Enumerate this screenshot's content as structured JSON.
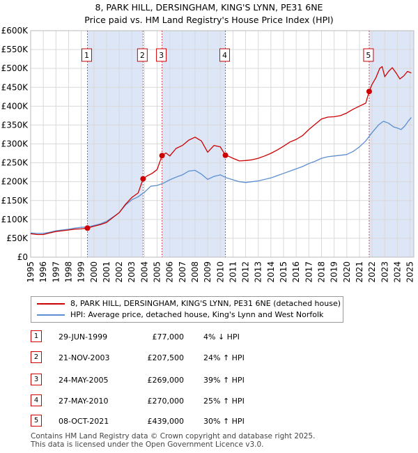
{
  "chart_data": {
    "type": "line",
    "title": "8, PARK HILL, DERSINGHAM, KING'S LYNN, PE31 6NE",
    "subtitle": "Price paid vs. HM Land Registry's House Price Index (HPI)",
    "xlabel": "",
    "ylabel": "",
    "xlim": [
      1995,
      2025.3
    ],
    "ylim": [
      0,
      600000
    ],
    "y_ticks": [
      {
        "value": 0,
        "label": "£0"
      },
      {
        "value": 50000,
        "label": "£50K"
      },
      {
        "value": 100000,
        "label": "£100K"
      },
      {
        "value": 150000,
        "label": "£150K"
      },
      {
        "value": 200000,
        "label": "£200K"
      },
      {
        "value": 250000,
        "label": "£250K"
      },
      {
        "value": 300000,
        "label": "£300K"
      },
      {
        "value": 350000,
        "label": "£350K"
      },
      {
        "value": 400000,
        "label": "£400K"
      },
      {
        "value": 450000,
        "label": "£450K"
      },
      {
        "value": 500000,
        "label": "£500K"
      },
      {
        "value": 550000,
        "label": "£550K"
      },
      {
        "value": 600000,
        "label": "£600K"
      }
    ],
    "x_ticks": [
      "1995",
      "1996",
      "1997",
      "1998",
      "1999",
      "2000",
      "2001",
      "2002",
      "2003",
      "2004",
      "2005",
      "2006",
      "2007",
      "2008",
      "2009",
      "2010",
      "2011",
      "2012",
      "2013",
      "2014",
      "2015",
      "2016",
      "2017",
      "2018",
      "2019",
      "2020",
      "2021",
      "2022",
      "2023",
      "2024",
      "2025"
    ],
    "series": [
      {
        "name": "8, PARK HILL, DERSINGHAM, KING'S LYNN, PE31 6NE (detached house)",
        "color": "#cc0000",
        "x": [
          1995.0,
          1995.5,
          1996.0,
          1996.5,
          1997.0,
          1997.5,
          1998.0,
          1998.5,
          1999.0,
          1999.49,
          2000.0,
          2000.5,
          2001.0,
          2001.5,
          2002.0,
          2002.5,
          2003.0,
          2003.5,
          2003.89,
          2004.2,
          2004.6,
          2005.0,
          2005.39,
          2005.7,
          2006.0,
          2006.5,
          2007.0,
          2007.5,
          2008.0,
          2008.5,
          2009.0,
          2009.5,
          2010.0,
          2010.4,
          2010.6,
          2011.0,
          2011.5,
          2012.0,
          2012.5,
          2013.0,
          2013.5,
          2014.0,
          2014.5,
          2015.0,
          2015.5,
          2016.0,
          2016.5,
          2017.0,
          2017.5,
          2018.0,
          2018.5,
          2019.0,
          2019.5,
          2020.0,
          2020.5,
          2021.0,
          2021.5,
          2021.77,
          2022.0,
          2022.3,
          2022.6,
          2022.8,
          2023.0,
          2023.3,
          2023.6,
          2023.9,
          2024.2,
          2024.5,
          2024.8,
          2025.1
        ],
        "values": [
          62000,
          60000,
          60000,
          64000,
          68000,
          70000,
          72000,
          74000,
          75000,
          77000,
          82000,
          86000,
          92000,
          105000,
          118000,
          140000,
          158000,
          170000,
          207500,
          215000,
          222000,
          232000,
          269000,
          276000,
          268000,
          288000,
          296000,
          310000,
          318000,
          308000,
          278000,
          296000,
          292000,
          270000,
          268000,
          262000,
          255000,
          256000,
          258000,
          262000,
          268000,
          275000,
          284000,
          294000,
          305000,
          312000,
          322000,
          338000,
          352000,
          366000,
          371000,
          372000,
          375000,
          382000,
          392000,
          400000,
          408000,
          439000,
          458000,
          475000,
          500000,
          505000,
          478000,
          492000,
          502000,
          488000,
          472000,
          480000,
          492000,
          488000
        ]
      },
      {
        "name": "HPI: Average price, detached house, King's Lynn and West Norfolk",
        "color": "#5b8ed0",
        "x": [
          1995.0,
          1995.5,
          1996.0,
          1996.5,
          1997.0,
          1997.5,
          1998.0,
          1998.5,
          1999.0,
          1999.5,
          2000.0,
          2000.5,
          2001.0,
          2001.5,
          2002.0,
          2002.5,
          2003.0,
          2003.5,
          2004.0,
          2004.5,
          2005.0,
          2005.5,
          2006.0,
          2006.5,
          2007.0,
          2007.5,
          2008.0,
          2008.5,
          2009.0,
          2009.5,
          2010.0,
          2010.5,
          2011.0,
          2011.5,
          2012.0,
          2012.5,
          2013.0,
          2013.5,
          2014.0,
          2014.5,
          2015.0,
          2015.5,
          2016.0,
          2016.5,
          2017.0,
          2017.5,
          2018.0,
          2018.5,
          2019.0,
          2019.5,
          2020.0,
          2020.5,
          2021.0,
          2021.5,
          2022.0,
          2022.5,
          2022.9,
          2023.3,
          2023.7,
          2024.0,
          2024.3,
          2024.6,
          2024.9,
          2025.1
        ],
        "values": [
          64000,
          63000,
          63000,
          66000,
          70000,
          72000,
          74000,
          77000,
          79000,
          80000,
          84000,
          88000,
          95000,
          106000,
          118000,
          138000,
          152000,
          160000,
          172000,
          188000,
          190000,
          196000,
          205000,
          212000,
          218000,
          228000,
          230000,
          220000,
          206000,
          214000,
          218000,
          210000,
          205000,
          200000,
          198000,
          200000,
          202000,
          206000,
          210000,
          216000,
          222000,
          228000,
          234000,
          240000,
          248000,
          254000,
          262000,
          266000,
          268000,
          270000,
          272000,
          280000,
          292000,
          308000,
          330000,
          350000,
          360000,
          355000,
          345000,
          342000,
          338000,
          348000,
          362000,
          370000
        ]
      }
    ],
    "sales": [
      {
        "label": "1",
        "x": 1999.49,
        "value": 77000
      },
      {
        "label": "2",
        "x": 2003.89,
        "value": 207500
      },
      {
        "label": "3",
        "x": 2005.39,
        "value": 269000
      },
      {
        "label": "4",
        "x": 2010.4,
        "value": 270000
      },
      {
        "label": "5",
        "x": 2021.77,
        "value": 439000
      }
    ],
    "shaded_spans": [
      [
        1999.49,
        2003.89
      ],
      [
        2005.39,
        2010.4
      ],
      [
        2021.77,
        2025.3
      ]
    ]
  },
  "colors": {
    "price": "#cc0000",
    "hpi": "#5b8ed0",
    "shade": "#dce6f7",
    "grid": "#d9d9d9"
  },
  "legend": {
    "price_label": "8, PARK HILL, DERSINGHAM, KING'S LYNN, PE31 6NE (detached house)",
    "hpi_label": "HPI: Average price, detached house, King's Lynn and West Norfolk"
  },
  "transactions": [
    {
      "num": "1",
      "date": "29-JUN-1999",
      "price": "£77,000",
      "hpi": "4% ↓ HPI"
    },
    {
      "num": "2",
      "date": "21-NOV-2003",
      "price": "£207,500",
      "hpi": "24% ↑ HPI"
    },
    {
      "num": "3",
      "date": "24-MAY-2005",
      "price": "£269,000",
      "hpi": "39% ↑ HPI"
    },
    {
      "num": "4",
      "date": "27-MAY-2010",
      "price": "£270,000",
      "hpi": "25% ↑ HPI"
    },
    {
      "num": "5",
      "date": "08-OCT-2021",
      "price": "£439,000",
      "hpi": "30% ↑ HPI"
    }
  ],
  "footer": {
    "line1": "Contains HM Land Registry data © Crown copyright and database right 2025.",
    "line2": "This data is licensed under the Open Government Licence v3.0."
  }
}
